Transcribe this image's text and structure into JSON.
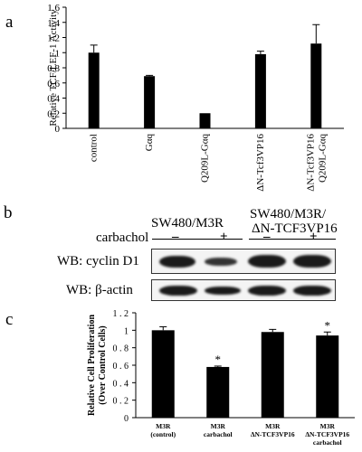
{
  "panels": {
    "a": {
      "letter": "a"
    },
    "b": {
      "letter": "b"
    },
    "c": {
      "letter": "c"
    }
  },
  "chart_data": [
    {
      "type": "bar",
      "ylabel": "Relative TCF/LEF-1 Activity",
      "ylim": [
        0,
        1.6
      ],
      "yticks": [
        "0",
        "0.2",
        "0.4",
        "0.6",
        "0.8",
        "1",
        "1.2",
        "1.4",
        "1.6"
      ],
      "categories": [
        "control",
        "Gαq",
        "Q209L-Gαq",
        "ΔN-Tcf3VP16",
        "ΔN-Tcf3VP16 Q209L-Gαq"
      ],
      "values": [
        1.0,
        0.69,
        0.2,
        0.98,
        1.12
      ],
      "errors": [
        0.1,
        0.01,
        0.0,
        0.04,
        0.25
      ],
      "grid": false,
      "bar_color": "#000000"
    },
    {
      "type": "bar",
      "ylabel": "Relative Cell Proliferation (Over Control Cells)",
      "ylim": [
        0,
        1.2
      ],
      "yticks": [
        "0",
        "0 . 2",
        "0 . 4",
        "0 . 6",
        "0 . 8",
        "1",
        "1 . 2"
      ],
      "categories": [
        [
          "M3R",
          "(control)"
        ],
        [
          "M3R",
          "carbachol"
        ],
        [
          "M3R",
          "ΔN-TCF3VP16"
        ],
        [
          "M3R",
          "ΔN-TCF3VP16",
          "carbachol"
        ]
      ],
      "values": [
        1.0,
        0.58,
        0.98,
        0.94
      ],
      "errors": [
        0.04,
        0.01,
        0.03,
        0.04
      ],
      "significance": [
        "",
        "*",
        "",
        "*"
      ],
      "grid": false,
      "bar_color": "#000000"
    }
  ],
  "blot": {
    "header_left": "SW480/M3R",
    "header_right_line1": "SW480/M3R/",
    "header_right_line2": "ΔN-TCF3VP16",
    "treatment_label": "carbachol",
    "signs": [
      "–",
      "+",
      "–",
      "+"
    ],
    "rows": [
      {
        "label": "WB: cyclin D1"
      },
      {
        "label": "WB: β-actin"
      }
    ]
  }
}
